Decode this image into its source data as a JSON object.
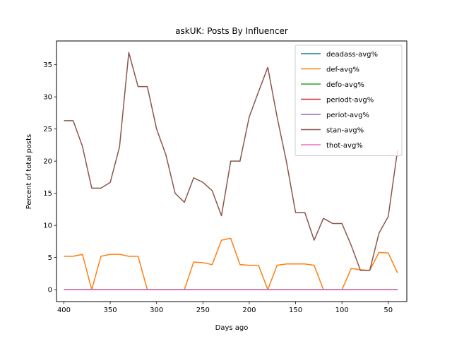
{
  "chart_data": {
    "type": "line",
    "title": "askUK: Posts By Influencer",
    "xlabel": "Days ago",
    "ylabel": "Percent of total posts",
    "xlim": [
      408,
      30
    ],
    "ylim": [
      -1.85,
      38.7
    ],
    "xticks": [
      400,
      350,
      300,
      250,
      200,
      150,
      100,
      50
    ],
    "yticks": [
      0,
      5,
      10,
      15,
      20,
      25,
      30,
      35
    ],
    "legend_position": "top-right",
    "grid": false,
    "x": [
      400,
      390,
      380,
      370,
      360,
      350,
      340,
      330,
      320,
      310,
      300,
      290,
      280,
      270,
      260,
      250,
      240,
      230,
      220,
      210,
      200,
      190,
      180,
      170,
      160,
      150,
      140,
      130,
      120,
      110,
      100,
      90,
      80,
      70,
      60,
      50,
      40
    ],
    "series": [
      {
        "name": "deadass-avg%",
        "color": "#1f77b4",
        "values": [
          0,
          0,
          0,
          0,
          0,
          0,
          0,
          0,
          0,
          0,
          0,
          0,
          0,
          0,
          0,
          0,
          0,
          0,
          0,
          0,
          0,
          0,
          0,
          0,
          0,
          0,
          0,
          0,
          0,
          0,
          0,
          0,
          0,
          0,
          0,
          0,
          0
        ]
      },
      {
        "name": "def-avg%",
        "color": "#ff7f0e",
        "values": [
          5.2,
          5.2,
          5.5,
          0.0,
          5.2,
          5.5,
          5.5,
          5.2,
          5.2,
          0.0,
          0.0,
          0.0,
          0.0,
          0.0,
          4.3,
          4.2,
          3.9,
          7.7,
          8.0,
          3.9,
          3.8,
          3.8,
          0.0,
          3.8,
          4.0,
          4.0,
          4.0,
          3.8,
          0.0,
          0.0,
          0.0,
          3.3,
          3.1,
          3.0,
          5.8,
          5.7,
          2.6
        ]
      },
      {
        "name": "defo-avg%",
        "color": "#2ca02c",
        "values": [
          0,
          0,
          0,
          0,
          0,
          0,
          0,
          0,
          0,
          0,
          0,
          0,
          0,
          0,
          0,
          0,
          0,
          0,
          0,
          0,
          0,
          0,
          0,
          0,
          0,
          0,
          0,
          0,
          0,
          0,
          0,
          0,
          0,
          0,
          0,
          0,
          0
        ]
      },
      {
        "name": "periodt-avg%",
        "color": "#d62728",
        "values": [
          0,
          0,
          0,
          0,
          0,
          0,
          0,
          0,
          0,
          0,
          0,
          0,
          0,
          0,
          0,
          0,
          0,
          0,
          0,
          0,
          0,
          0,
          0,
          0,
          0,
          0,
          0,
          0,
          0,
          0,
          0,
          0,
          0,
          0,
          0,
          0,
          0
        ]
      },
      {
        "name": "periot-avg%",
        "color": "#9467bd",
        "values": [
          0,
          0,
          0,
          0,
          0,
          0,
          0,
          0,
          0,
          0,
          0,
          0,
          0,
          0,
          0,
          0,
          0,
          0,
          0,
          0,
          0,
          0,
          0,
          0,
          0,
          0,
          0,
          0,
          0,
          0,
          0,
          0,
          0,
          0,
          0,
          0,
          0
        ]
      },
      {
        "name": "stan-avg%",
        "color": "#8c564b",
        "values": [
          26.3,
          26.3,
          22.3,
          15.8,
          15.8,
          16.7,
          22.2,
          36.9,
          31.6,
          31.6,
          25.0,
          21.0,
          15.0,
          13.6,
          17.4,
          16.7,
          15.4,
          11.5,
          20.0,
          20.0,
          26.9,
          30.8,
          34.6,
          26.9,
          20.0,
          12.0,
          12.0,
          7.7,
          11.1,
          10.3,
          10.3,
          6.9,
          3.0,
          3.0,
          8.8,
          11.4,
          21.7
        ]
      },
      {
        "name": "thot-avg%",
        "color": "#e377c2",
        "values": [
          0,
          0,
          0,
          0,
          0,
          0,
          0,
          0,
          0,
          0,
          0,
          0,
          0,
          0,
          0,
          0,
          0,
          0,
          0,
          0,
          0,
          0,
          0,
          0,
          0,
          0,
          0,
          0,
          0,
          0,
          0,
          0,
          0,
          0,
          0,
          0,
          0
        ]
      }
    ]
  }
}
